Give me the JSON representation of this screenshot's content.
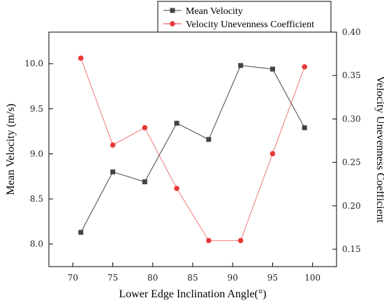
{
  "chart_data": {
    "type": "line",
    "title": "",
    "xlabel": "Lower Edge Inclination Angle(°)",
    "xlim": [
      67,
      103
    ],
    "x_ticks": [
      70,
      75,
      80,
      85,
      90,
      95,
      100
    ],
    "y_left": {
      "label": "Mean Velocity (m/s)",
      "ylim": [
        7.75,
        10.35
      ],
      "ticks": [
        "8.0",
        "8.5",
        "9.0",
        "9.5",
        "10.0"
      ]
    },
    "y_right": {
      "label": "Velocity  Unevenness Coefficient",
      "ylim": [
        0.13,
        0.4
      ],
      "ticks": [
        "0.15",
        "0.20",
        "0.25",
        "0.30",
        "0.35",
        "0.40"
      ]
    },
    "grid": false,
    "legend_position": "top-right",
    "series": [
      {
        "name": "Mean Velocity",
        "axis": "left",
        "color": "#444444",
        "marker": "square",
        "x": [
          71,
          75,
          79,
          83,
          87,
          91,
          95,
          99
        ],
        "values": [
          8.13,
          8.8,
          8.69,
          9.34,
          9.16,
          9.98,
          9.94,
          9.29
        ]
      },
      {
        "name": "Velocity  Unevenness Coefficient",
        "axis": "right",
        "color": "#e8393a",
        "marker": "circle",
        "x": [
          71,
          75,
          79,
          83,
          87,
          91,
          95,
          99
        ],
        "values": [
          0.37,
          0.27,
          0.29,
          0.22,
          0.16,
          0.16,
          0.26,
          0.36
        ]
      }
    ]
  }
}
